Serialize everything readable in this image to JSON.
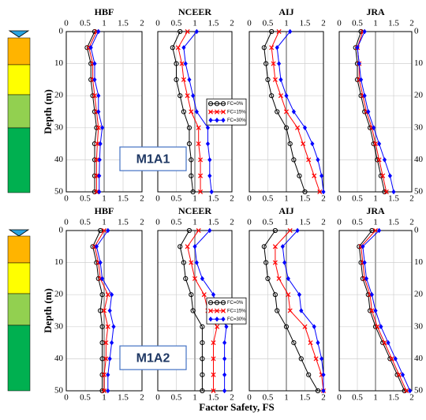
{
  "xlabel": "Factor Safety, FS",
  "chart_data": [
    {
      "type": "line",
      "title": "HBF",
      "row": 0,
      "ylabel": "Depth (m)",
      "annotation": "M1A1",
      "y": [
        0,
        5,
        10,
        15,
        20,
        25,
        30,
        35,
        40,
        45,
        50
      ],
      "xlim": [
        0,
        2
      ],
      "xticks": [
        0,
        0.5,
        1,
        1.5,
        2
      ],
      "ylim": [
        0,
        50
      ],
      "yticks": [
        0,
        10,
        20,
        30,
        40,
        50
      ],
      "grid": true,
      "reference_x": 1,
      "series": [
        {
          "name": "FC=0%",
          "color": "#000000",
          "marker": "circle",
          "values": [
            0.75,
            0.55,
            0.65,
            0.65,
            0.7,
            0.75,
            0.8,
            0.75,
            0.75,
            0.75,
            0.75
          ]
        },
        {
          "name": "FC=15%",
          "color": "#ff0000",
          "marker": "x",
          "values": [
            0.8,
            0.6,
            0.7,
            0.7,
            0.75,
            0.8,
            0.85,
            0.82,
            0.8,
            0.8,
            0.8
          ]
        },
        {
          "name": "FC=30%",
          "color": "#0000ff",
          "marker": "diamond",
          "values": [
            0.85,
            0.65,
            0.75,
            0.75,
            0.85,
            0.85,
            0.95,
            0.9,
            0.88,
            0.87,
            0.87
          ]
        }
      ]
    },
    {
      "type": "line",
      "title": "NCEER",
      "row": 0,
      "legend": "center",
      "y": [
        0,
        5,
        10,
        15,
        20,
        25,
        30,
        35,
        40,
        45,
        50
      ],
      "xlim": [
        0,
        2
      ],
      "xticks": [
        0,
        0.5,
        1,
        1.5,
        2
      ],
      "ylim": [
        0,
        50
      ],
      "yticks": [
        0,
        10,
        20,
        30,
        40,
        50
      ],
      "grid": true,
      "reference_x": 1,
      "series": [
        {
          "name": "FC=0%",
          "color": "#000000",
          "marker": "circle",
          "values": [
            0.6,
            0.4,
            0.5,
            0.5,
            0.6,
            0.7,
            0.85,
            0.85,
            0.9,
            0.9,
            0.95
          ]
        },
        {
          "name": "FC=15%",
          "color": "#ff0000",
          "marker": "x",
          "values": [
            0.8,
            0.55,
            0.65,
            0.7,
            0.8,
            0.9,
            1.1,
            1.1,
            1.15,
            1.15,
            1.15
          ]
        },
        {
          "name": "FC=30%",
          "color": "#0000ff",
          "marker": "diamond",
          "values": [
            1.05,
            0.7,
            0.75,
            0.85,
            0.95,
            1.05,
            1.35,
            1.35,
            1.4,
            1.4,
            1.45
          ]
        }
      ]
    },
    {
      "type": "line",
      "title": "AIJ",
      "row": 0,
      "y": [
        0,
        5,
        10,
        15,
        20,
        25,
        30,
        35,
        40,
        45,
        50
      ],
      "xlim": [
        0,
        2
      ],
      "xticks": [
        0,
        0.5,
        1,
        1.5,
        2
      ],
      "ylim": [
        0,
        50
      ],
      "yticks": [
        0,
        10,
        20,
        30,
        40,
        50
      ],
      "grid": true,
      "reference_x": 1,
      "series": [
        {
          "name": "FC=0%",
          "color": "#000000",
          "marker": "circle",
          "values": [
            0.6,
            0.4,
            0.45,
            0.5,
            0.6,
            0.75,
            1.0,
            1.1,
            1.2,
            1.35,
            1.5
          ]
        },
        {
          "name": "FC=15%",
          "color": "#ff0000",
          "marker": "x",
          "values": [
            0.8,
            0.6,
            0.65,
            0.7,
            0.85,
            1.0,
            1.3,
            1.45,
            1.6,
            1.75,
            1.9
          ]
        },
        {
          "name": "FC=30%",
          "color": "#0000ff",
          "marker": "diamond",
          "values": [
            1.1,
            0.75,
            0.8,
            0.85,
            1.0,
            1.2,
            1.5,
            1.7,
            1.85,
            1.95,
            2
          ]
        }
      ]
    },
    {
      "type": "line",
      "title": "JRA",
      "row": 0,
      "y": [
        0,
        5,
        10,
        15,
        20,
        25,
        30,
        35,
        40,
        45,
        50
      ],
      "xlim": [
        0,
        2
      ],
      "xticks": [
        0,
        0.5,
        1,
        1.5,
        2
      ],
      "ylim": [
        0,
        50
      ],
      "yticks": [
        0,
        10,
        20,
        30,
        40,
        50
      ],
      "grid": true,
      "reference_x": 1,
      "series": [
        {
          "name": "FC=0%",
          "color": "#000000",
          "marker": "circle",
          "values": [
            0.6,
            0.45,
            0.5,
            0.5,
            0.6,
            0.7,
            0.85,
            0.95,
            1.05,
            1.15,
            1.25
          ]
        },
        {
          "name": "FC=15%",
          "color": "#ff0000",
          "marker": "x",
          "values": [
            0.65,
            0.5,
            0.55,
            0.55,
            0.65,
            0.75,
            0.9,
            1.0,
            1.1,
            1.2,
            1.3
          ]
        },
        {
          "name": "FC=30%",
          "color": "#0000ff",
          "marker": "diamond",
          "values": [
            0.7,
            0.5,
            0.55,
            0.6,
            0.7,
            0.8,
            0.95,
            1.1,
            1.25,
            1.4,
            1.5
          ]
        }
      ]
    },
    {
      "type": "line",
      "title": "HBF",
      "row": 1,
      "ylabel": "Depth (m)",
      "annotation": "M1A2",
      "y": [
        0,
        5,
        10,
        15,
        20,
        25,
        30,
        35,
        40,
        45,
        50
      ],
      "xlim": [
        0,
        2
      ],
      "xticks": [
        0,
        0.5,
        1,
        1.5,
        2
      ],
      "ylim": [
        0,
        50
      ],
      "yticks": [
        0,
        10,
        20,
        30,
        40,
        50
      ],
      "grid": true,
      "reference_x": 1,
      "series": [
        {
          "name": "FC=0%",
          "color": "#000000",
          "marker": "circle",
          "values": [
            0.9,
            0.7,
            0.8,
            0.85,
            0.95,
            0.9,
            0.95,
            0.95,
            0.95,
            0.95,
            0.95
          ]
        },
        {
          "name": "FC=15%",
          "color": "#ff0000",
          "marker": "x",
          "values": [
            1.0,
            0.75,
            0.85,
            0.9,
            1.1,
            1.0,
            1.1,
            1.05,
            1.05,
            1.0,
            1.0
          ]
        },
        {
          "name": "FC=30%",
          "color": "#0000ff",
          "marker": "diamond",
          "values": [
            1.1,
            0.8,
            0.9,
            0.95,
            1.2,
            1.15,
            1.25,
            1.2,
            1.15,
            1.1,
            1.1
          ]
        }
      ]
    },
    {
      "type": "line",
      "title": "NCEER",
      "row": 1,
      "legend": "center",
      "y": [
        0,
        5,
        10,
        15,
        20,
        25,
        30,
        35,
        40,
        45,
        50
      ],
      "xlim": [
        0,
        2
      ],
      "xticks": [
        0,
        0.5,
        1,
        1.5,
        2
      ],
      "ylim": [
        0,
        50
      ],
      "yticks": [
        0,
        10,
        20,
        30,
        40,
        50
      ],
      "grid": true,
      "reference_x": 1,
      "series": [
        {
          "name": "FC=0%",
          "color": "#000000",
          "marker": "circle",
          "values": [
            0.85,
            0.6,
            0.7,
            0.75,
            0.9,
            0.95,
            1.2,
            1.2,
            1.2,
            1.2,
            1.2
          ]
        },
        {
          "name": "FC=15%",
          "color": "#ff0000",
          "marker": "x",
          "values": [
            1.1,
            0.8,
            0.9,
            1.0,
            1.25,
            1.35,
            1.6,
            1.5,
            1.5,
            1.5,
            1.5
          ]
        },
        {
          "name": "FC=30%",
          "color": "#0000ff",
          "marker": "diamond",
          "values": [
            1.4,
            1.0,
            1.05,
            1.2,
            1.5,
            1.6,
            1.85,
            1.8,
            1.8,
            1.8,
            1.8
          ]
        }
      ]
    },
    {
      "type": "line",
      "title": "AIJ",
      "row": 1,
      "y": [
        0,
        5,
        10,
        15,
        20,
        25,
        30,
        35,
        40,
        45,
        50
      ],
      "xlim": [
        0,
        2
      ],
      "xticks": [
        0,
        0.5,
        1,
        1.5,
        2
      ],
      "ylim": [
        0,
        50
      ],
      "yticks": [
        0,
        10,
        20,
        30,
        40,
        50
      ],
      "grid": true,
      "reference_x": 1,
      "series": [
        {
          "name": "FC=0%",
          "color": "#000000",
          "marker": "circle",
          "values": [
            0.7,
            0.4,
            0.45,
            0.5,
            0.7,
            0.75,
            1.0,
            1.2,
            1.4,
            1.6,
            1.85
          ]
        },
        {
          "name": "FC=15%",
          "color": "#ff0000",
          "marker": "x",
          "values": [
            1.1,
            0.7,
            0.7,
            0.8,
            1.05,
            1.1,
            1.5,
            1.65,
            1.8,
            1.95,
            2
          ]
        },
        {
          "name": "FC=30%",
          "color": "#0000ff",
          "marker": "diamond",
          "values": [
            1.3,
            0.9,
            0.95,
            1.05,
            1.35,
            1.4,
            1.75,
            1.85,
            1.95,
            2,
            2
          ]
        }
      ]
    },
    {
      "type": "line",
      "title": "JRA",
      "row": 1,
      "y": [
        0,
        5,
        10,
        15,
        20,
        25,
        30,
        35,
        40,
        45,
        50
      ],
      "xlim": [
        0,
        2
      ],
      "xticks": [
        0,
        0.5,
        1,
        1.5,
        2
      ],
      "ylim": [
        0,
        50
      ],
      "yticks": [
        0,
        10,
        20,
        30,
        40,
        50
      ],
      "grid": true,
      "reference_x": 1,
      "series": [
        {
          "name": "FC=0%",
          "color": "#000000",
          "marker": "circle",
          "values": [
            0.9,
            0.55,
            0.6,
            0.65,
            0.8,
            0.85,
            1.0,
            1.2,
            1.4,
            1.6,
            1.8
          ]
        },
        {
          "name": "FC=15%",
          "color": "#ff0000",
          "marker": "x",
          "values": [
            1.0,
            0.6,
            0.65,
            0.7,
            0.85,
            0.9,
            1.05,
            1.25,
            1.45,
            1.65,
            1.85
          ]
        },
        {
          "name": "FC=30%",
          "color": "#0000ff",
          "marker": "diamond",
          "values": [
            1.1,
            0.65,
            0.7,
            0.75,
            0.9,
            1.0,
            1.15,
            1.35,
            1.55,
            1.75,
            1.95
          ]
        }
      ]
    }
  ]
}
